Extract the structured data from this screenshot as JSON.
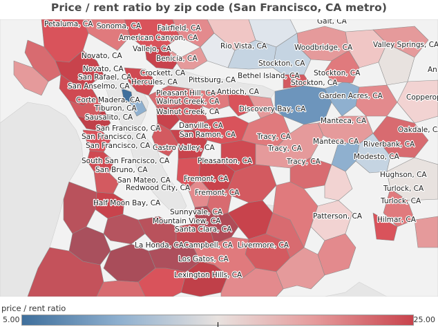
{
  "title": "Price / rent ratio by zip code (San Francisco, CA metro)",
  "map": {
    "water_color": "#e6e6e6",
    "land_color": "#f2f2f2",
    "border_color": "#8c8c8c",
    "places": [
      "Petaluma, CA",
      "Sonoma, CA",
      "Fairfield, CA",
      "American Canyon, CA",
      "Vallejo, CA",
      "Gait, CA",
      "Rio Vista, CA",
      "Woodbridge, CA",
      "Valley Springs, CA",
      "Novato, CA",
      "Benicia, CA",
      "Stockton, CA",
      "Novato, CA",
      "San Rafael, CA",
      "Crockett, CA",
      "Hercules, CA",
      "Pittsburg, CA",
      "Bethel Island, CA",
      "Stockton, CA",
      "San Anselmo, CA",
      "Stockton, CA",
      "Pleasant Hill, CA",
      "Antioch, CA",
      "Corte Madera, CA",
      "Walnut Creek, CA",
      "Garden Acres, CA",
      "Tiburon, CA",
      "Walnut Creek, CA",
      "Discovery Bay, CA",
      "Copperop",
      "Sausalito, CA",
      "Manteca, CA",
      "Danville, CA",
      "San Francisco, CA",
      "Oakdale, CA",
      "San Francisco, CA",
      "San Ramon, CA",
      "Tracy, CA",
      "Manteca, CA",
      "Riverbank, CA",
      "San Francisco, CA",
      "Castro Valley, CA",
      "Tracy, CA",
      "Modesto, CA",
      "South San Francisco, CA",
      "Pleasanton, CA",
      "Tracy, CA",
      "San Bruno, CA",
      "Hughson, CA",
      "San Mateo, CA",
      "Fremont, CA",
      "Redwood City, CA",
      "Turlock, CA",
      "Fremont, CA",
      "Turlock, CA",
      "Half Moon Bay, CA",
      "Sunnyvale, CA",
      "Patterson, CA",
      "Hilmar, CA",
      "Mountain View, CA",
      "Santa Clara, CA",
      "La Honda, CA",
      "Campbell, CA",
      "Livermore, CA",
      "Los Gatos, CA",
      "Lexington Hills, CA",
      "An"
    ]
  },
  "legend": {
    "title": "price / rent ratio",
    "min": "5.00",
    "max": "25.00",
    "colors": [
      "#3f6f9c",
      "#8fb0cf",
      "#e8e2df",
      "#e59a9b",
      "#c8434c"
    ]
  }
}
